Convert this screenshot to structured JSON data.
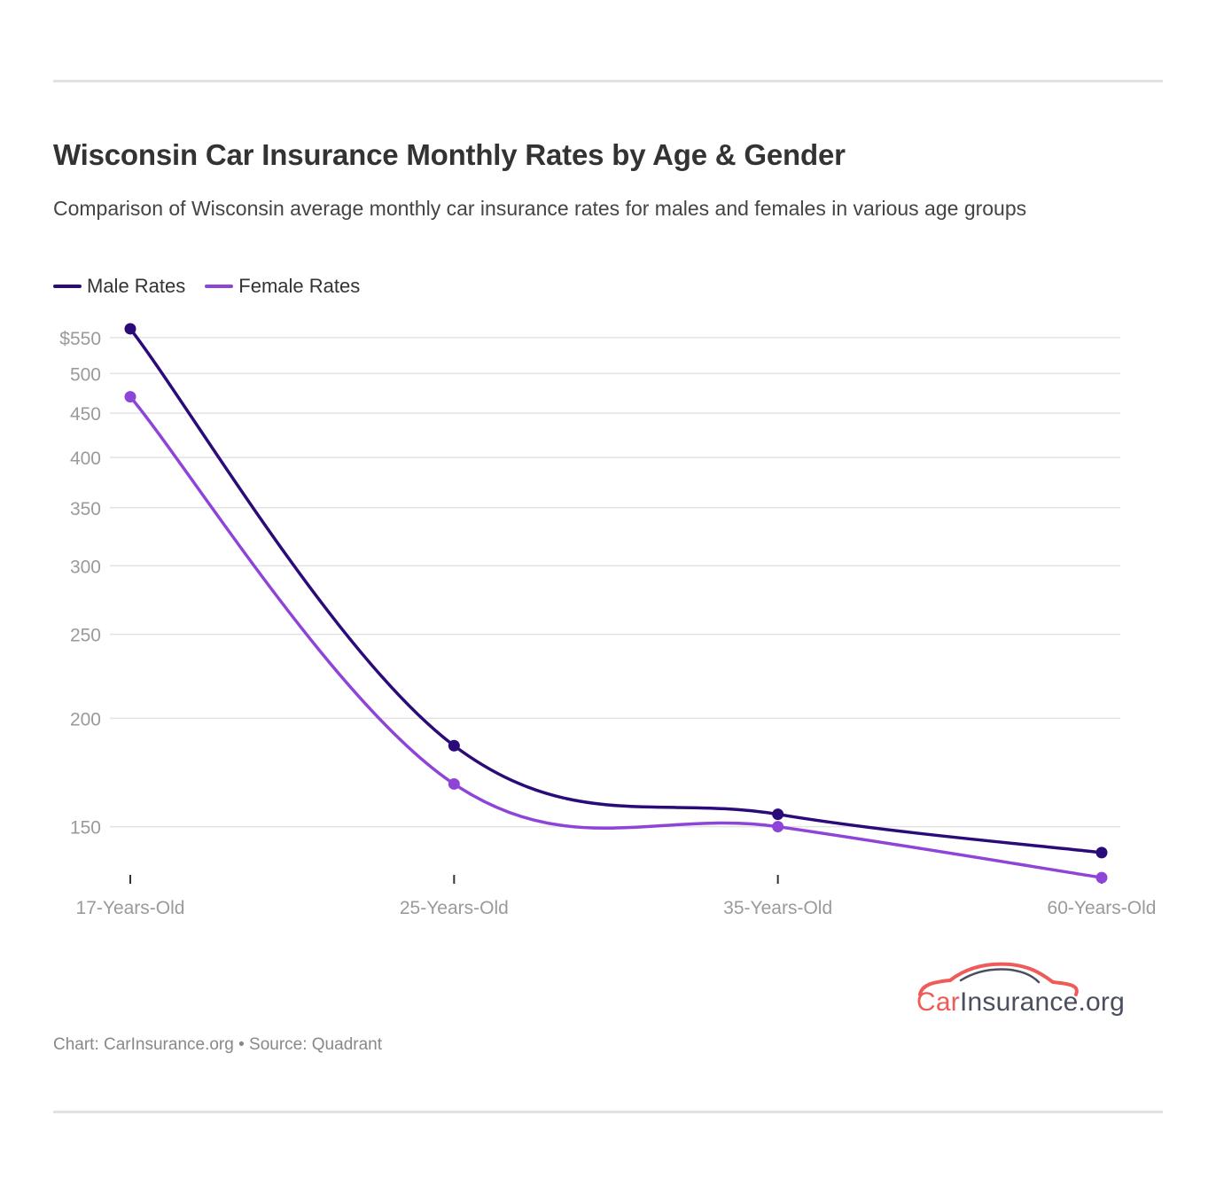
{
  "header": {
    "title": "Wisconsin Car Insurance Monthly Rates by Age & Gender",
    "subtitle": "Comparison of Wisconsin average monthly car insurance rates for males and females in various age groups"
  },
  "colors": {
    "male": "#2b0a7a",
    "female": "#8f44d8",
    "grid": "#e3e3e3",
    "tick_label": "#9a9a9a",
    "logo_accent": "#ee5b58",
    "logo_dark": "#4a4f5e"
  },
  "chart_data": {
    "type": "line",
    "title": "Wisconsin Car Insurance Monthly Rates by Age & Gender",
    "subtitle": "Comparison of Wisconsin average monthly car insurance rates for males and females in various age groups",
    "categories": [
      "17-Years-Old",
      "25-Years-Old",
      "35-Years-Old",
      "60-Years-Old"
    ],
    "series": [
      {
        "name": "Male Rates",
        "values": [
          563,
          186,
          155,
          140
        ]
      },
      {
        "name": "Female Rates",
        "values": [
          470,
          168,
          150,
          131
        ]
      }
    ],
    "y_scale": "log",
    "y_ticks": [
      150,
      200,
      250,
      300,
      350,
      400,
      450,
      500,
      550
    ],
    "y_tick_labels": [
      "150",
      "200",
      "250",
      "300",
      "350",
      "400",
      "450",
      "500",
      "$550"
    ],
    "ylim": [
      125,
      575
    ],
    "grid": true,
    "legend_position": "top-left",
    "xlabel": "",
    "ylabel": ""
  },
  "footer": {
    "credit": "Chart: CarInsurance.org • Source: Quadrant"
  },
  "logo": {
    "car": "Car",
    "rest": "Insurance.org"
  }
}
